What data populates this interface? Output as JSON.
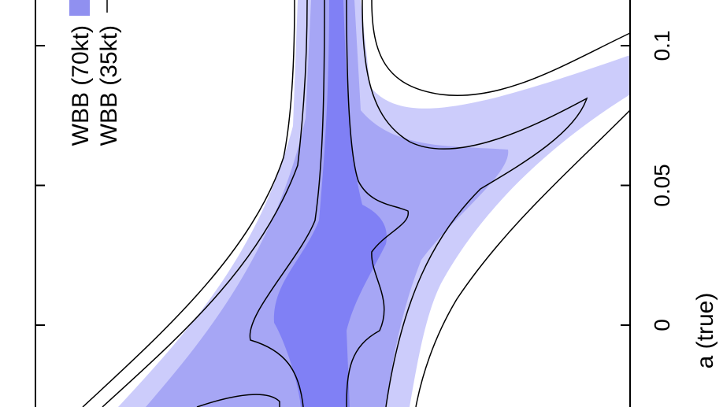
{
  "chart_data": {
    "type": "contour",
    "xlabel": "a (true)",
    "ylabel": "",
    "x_ticks": [
      {
        "value": 0,
        "label": "0"
      },
      {
        "value": 0.05,
        "label": "0.05"
      },
      {
        "value": 0.1,
        "label": "0.1"
      }
    ],
    "xlim": [
      -0.03,
      0.11
    ],
    "legend": {
      "placement": "top-left",
      "entries": [
        {
          "label": "WBB (70kt)",
          "style": "filled",
          "color": "#9090f0"
        },
        {
          "label": "WBB (35kt)",
          "style": "line",
          "color": "#000000"
        }
      ]
    },
    "fill_colors": [
      "#ccccfb",
      "#a6a6f5",
      "#8080f5"
    ],
    "line_color": "#000000"
  }
}
